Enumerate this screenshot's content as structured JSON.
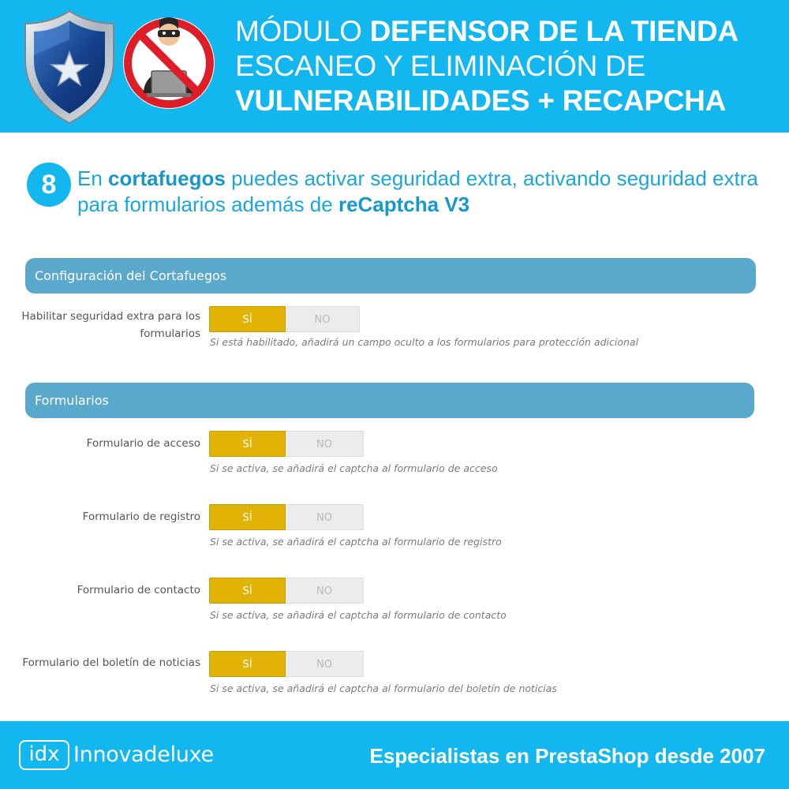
{
  "colors": {
    "brand_blue": "#12b7ef",
    "panel_header": "#5aa9cd",
    "toggle_active": "#e0b306",
    "toggle_inactive": "#ececec"
  },
  "header": {
    "icons": [
      "shield-star-icon",
      "forbidden-hacker-icon"
    ],
    "line1_regular": "MÓDULO",
    "line1_bold": "DEFENSOR DE LA TIENDA",
    "line2": "ESCANEO Y ELIMINACIÓN DE",
    "line3": "VULNERABILIDADES + RECAPCHA"
  },
  "step": {
    "number": "8",
    "text_1": "En ",
    "text_bold_1": "cortafuegos",
    "text_2": " puedes activar seguridad extra, activando seguridad extra para formularios además de ",
    "text_bold_2": "reCaptcha V3"
  },
  "firewall_panel": {
    "title": "Configuración del Cortafuegos",
    "field": {
      "label": "Habilitar seguridad extra para los formularios",
      "yes": "SÍ",
      "no": "NO",
      "selected": "SÍ",
      "help": "Si está habilitado, añadirá un campo oculto a los formularios para protección adicional"
    }
  },
  "forms_panel": {
    "title": "Formularios",
    "fields": [
      {
        "label": "Formulario de acceso",
        "yes": "SÍ",
        "no": "NO",
        "selected": "SÍ",
        "help": "Si se activa, se añadirá el captcha al formulario de acceso"
      },
      {
        "label": "Formulario de registro",
        "yes": "SÍ",
        "no": "NO",
        "selected": "SÍ",
        "help": "Si se activa, se añadirá el captcha al formulario de registro"
      },
      {
        "label": "Formulario de contacto",
        "yes": "SÍ",
        "no": "NO",
        "selected": "SÍ",
        "help": "Si se activa, se añadirá el captcha al formulario de contacto"
      },
      {
        "label": "Formulario del boletín de noticias",
        "yes": "SÍ",
        "no": "NO",
        "selected": "SÍ",
        "help": "Si se activa, se añadirá el captcha al formulario del boletín de noticias"
      }
    ]
  },
  "footer": {
    "logo_mark": "idx",
    "brand": "Innovadeluxe",
    "tagline": "Especialistas en PrestaShop desde 2007"
  }
}
